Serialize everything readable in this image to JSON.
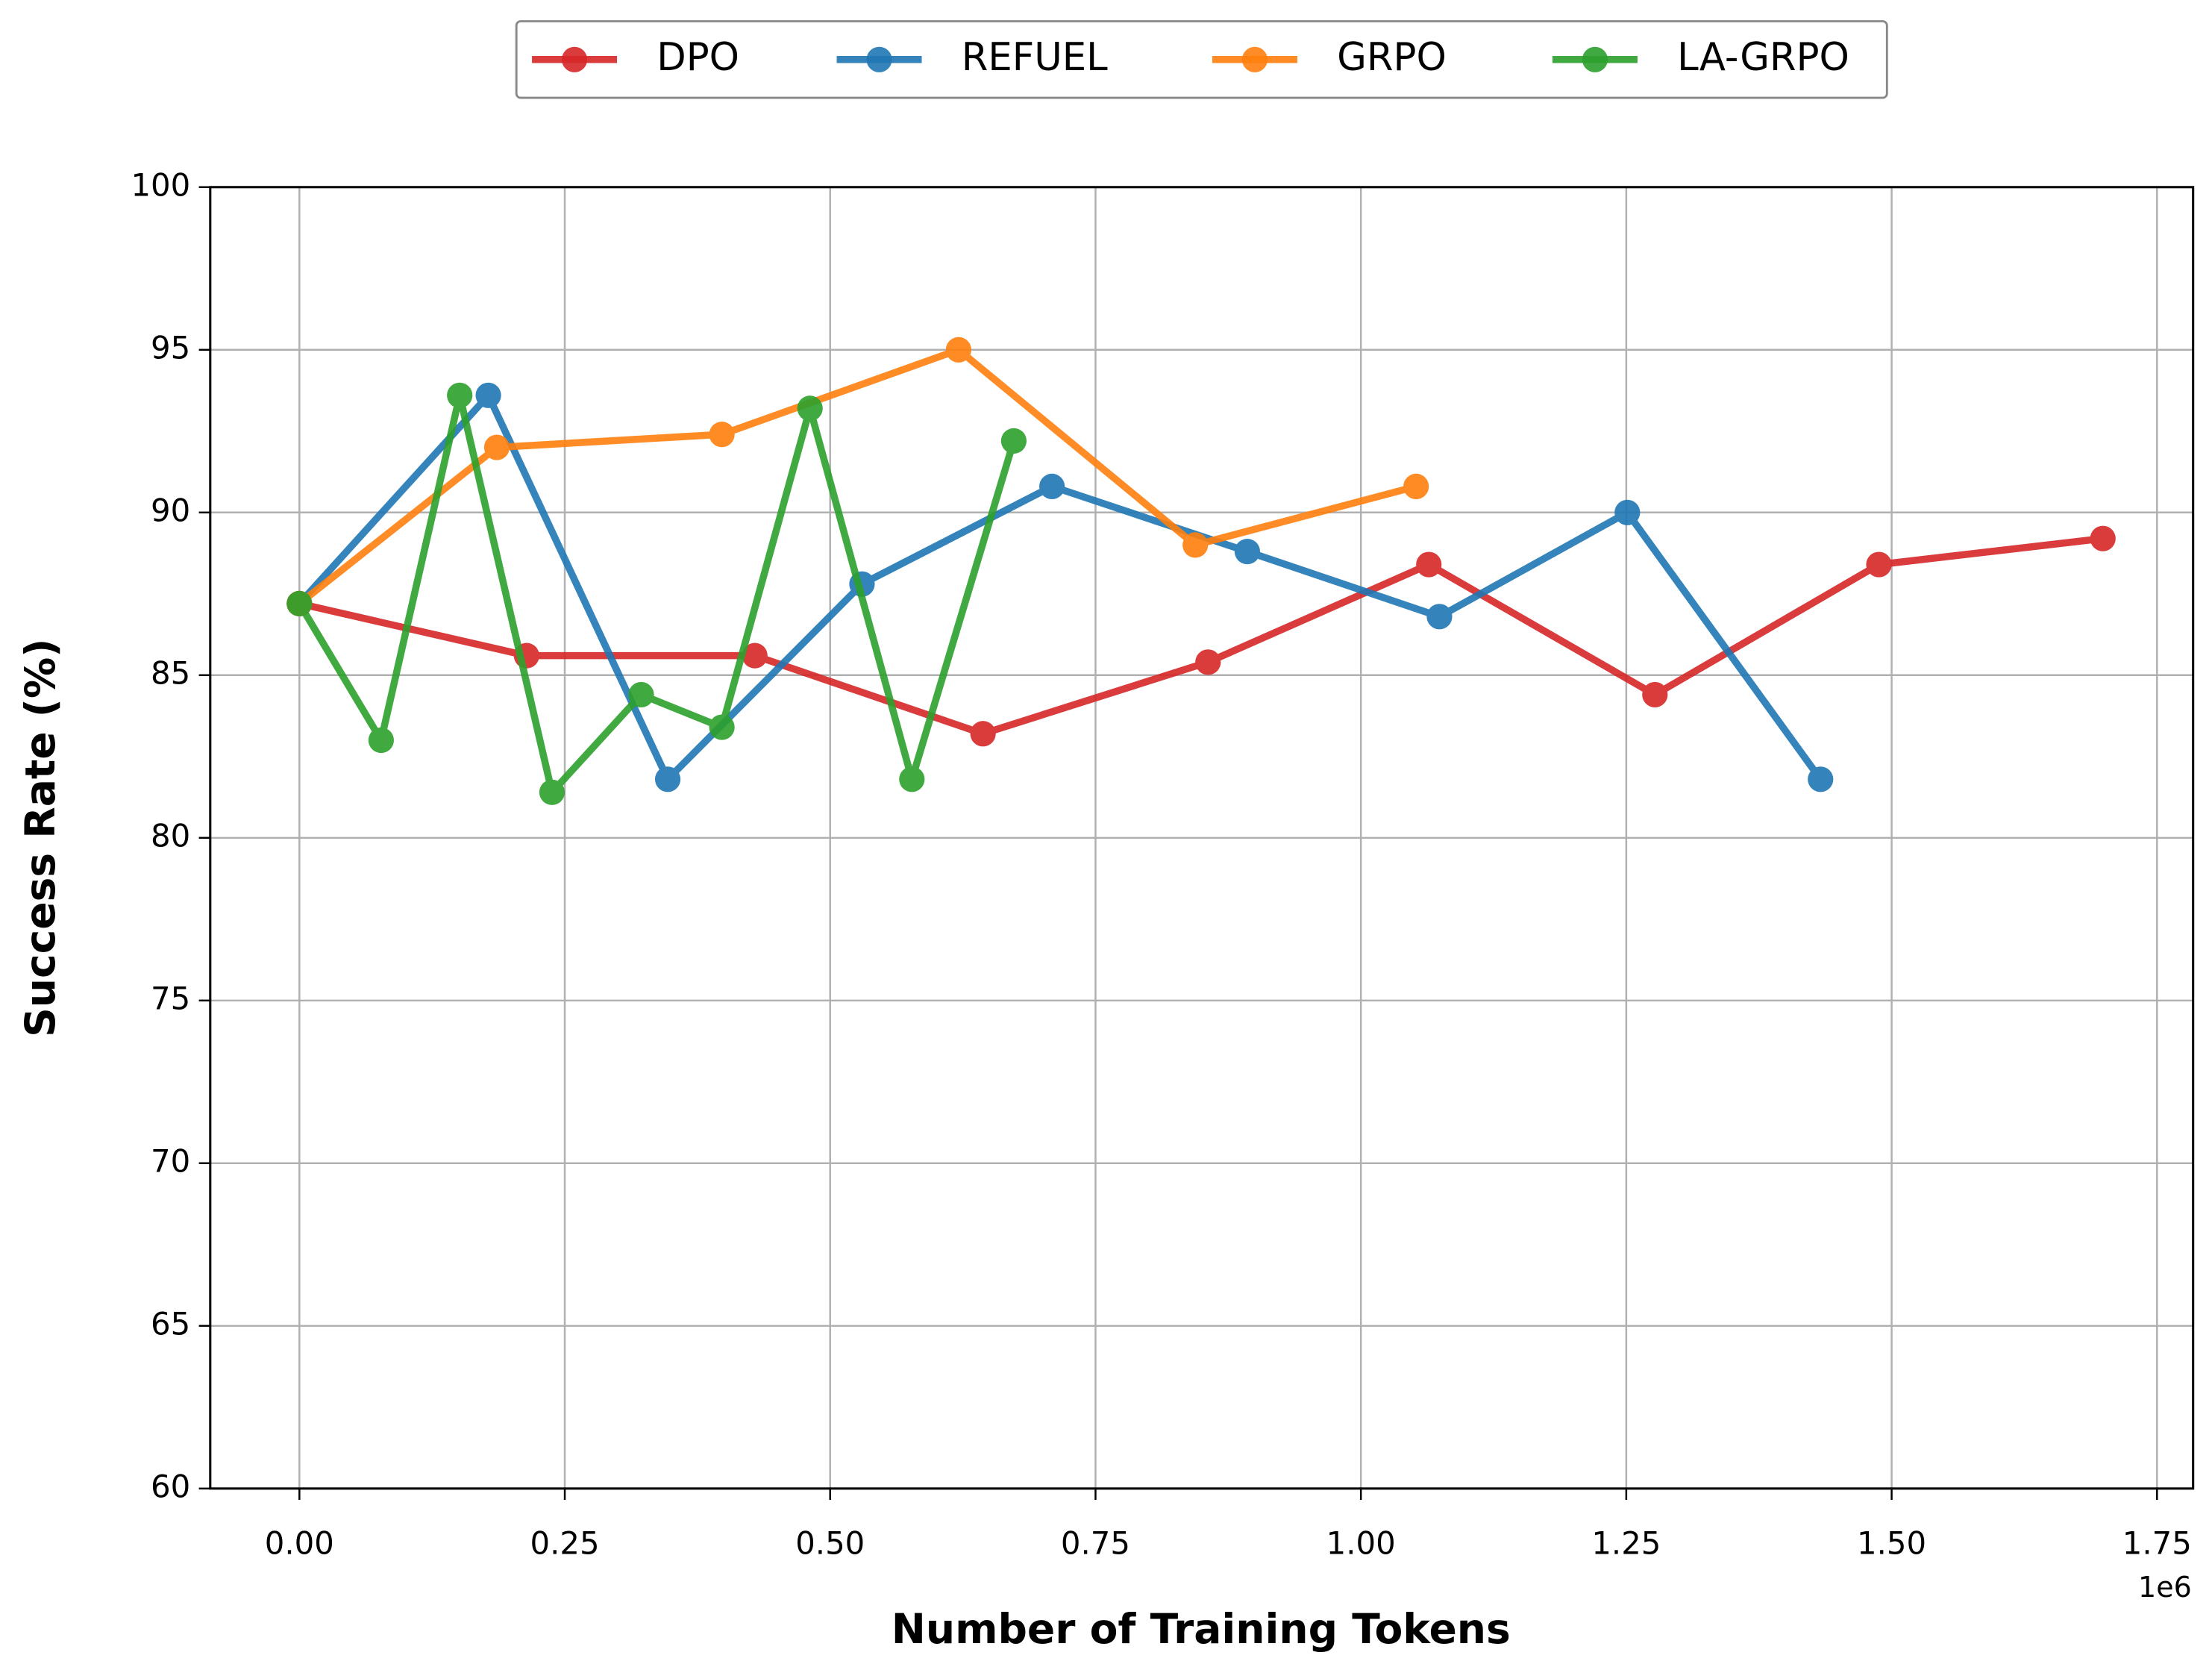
{
  "chart_data": {
    "type": "line",
    "x_label": "Number of Training Tokens",
    "y_label": "Success Rate (%)",
    "x_offset_label": "1e6",
    "xlim": [
      -84000,
      1784000
    ],
    "ylim": [
      60,
      100
    ],
    "xticks": [
      {
        "value": 0,
        "label": "0.00"
      },
      {
        "value": 250000,
        "label": "0.25"
      },
      {
        "value": 500000,
        "label": "0.50"
      },
      {
        "value": 750000,
        "label": "0.75"
      },
      {
        "value": 1000000,
        "label": "1.00"
      },
      {
        "value": 1250000,
        "label": "1.25"
      },
      {
        "value": 1500000,
        "label": "1.50"
      },
      {
        "value": 1750000,
        "label": "1.75"
      }
    ],
    "yticks": [
      60,
      65,
      70,
      75,
      80,
      85,
      90,
      95,
      100
    ],
    "grid": true,
    "legend": "upper center outside",
    "series": [
      {
        "name": "DPO",
        "color": "#d62728",
        "x": [
          0,
          214000,
          429000,
          644000,
          856000,
          1064000,
          1277000,
          1488000,
          1699000
        ],
        "values": [
          87.2,
          85.6,
          85.6,
          83.2,
          85.4,
          88.4,
          84.4,
          88.4,
          89.2
        ]
      },
      {
        "name": "REFUEL",
        "color": "#1f77b4",
        "x": [
          0,
          178000,
          347000,
          530000,
          709000,
          893000,
          1074000,
          1251000,
          1433000
        ],
        "values": [
          87.2,
          93.6,
          81.8,
          87.8,
          90.8,
          88.8,
          86.8,
          90.0,
          81.8
        ]
      },
      {
        "name": "GRPO",
        "color": "#ff7f0e",
        "x": [
          0,
          186000,
          398000,
          621000,
          844000,
          1052000
        ],
        "values": [
          87.2,
          92.0,
          92.4,
          95.0,
          89.0,
          90.8
        ]
      },
      {
        "name": "LA-GRPO",
        "color": "#2ca02c",
        "x": [
          0,
          77000,
          151000,
          238000,
          322000,
          398000,
          481000,
          577000,
          673000
        ],
        "values": [
          87.2,
          83.0,
          93.6,
          81.4,
          84.4,
          83.4,
          93.2,
          81.8,
          92.2
        ]
      }
    ]
  }
}
